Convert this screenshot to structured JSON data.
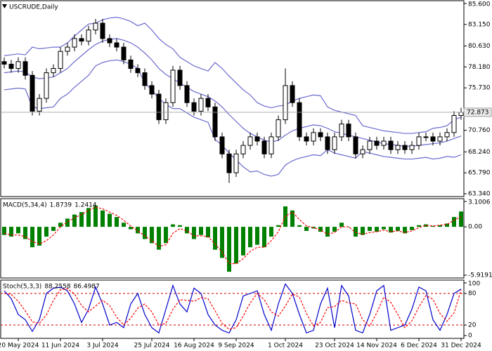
{
  "chart_data": [
    {
      "type": "candlestick",
      "title": "USCRUDE,Daily",
      "color": "#000000",
      "up_color": "#ffffff",
      "categories": [
        null,
        null,
        "20 May 2024",
        null,
        null,
        null,
        null,
        null,
        "11 Jun 2024",
        null,
        null,
        null,
        null,
        null,
        "3 Jul 2024",
        null,
        null,
        null,
        null,
        null,
        null,
        "25 Jul 2024",
        null,
        null,
        null,
        null,
        null,
        "16 Aug 2024",
        null,
        null,
        null,
        null,
        null,
        "9 Sep 2024",
        null,
        null,
        null,
        null,
        null,
        null,
        "1 Oct 2024",
        null,
        null,
        null,
        null,
        null,
        null,
        "23 Oct 2024",
        null,
        null,
        null,
        null,
        null,
        "14 Nov 2024",
        null,
        null,
        null,
        null,
        null,
        "6 Dec 2024",
        null,
        null,
        null,
        null,
        null,
        "31 Dec 2024"
      ],
      "open": [
        78.8,
        78.5,
        78.0,
        78.8,
        77.2,
        73.0,
        74.5,
        77.5,
        78.0,
        80.0,
        80.5,
        81.5,
        81.2,
        82.5,
        83.3,
        81.5,
        81.0,
        80.5,
        79.0,
        78.0,
        77.5,
        76.0,
        75.0,
        72.0,
        74.0,
        77.8,
        76.0,
        74.0,
        73.0,
        74.5,
        73.5,
        70.0,
        68.0,
        65.8,
        68.0,
        69.0,
        70.0,
        69.5,
        68.0,
        70.0,
        72.0,
        76.0,
        74.0,
        70.0,
        69.5,
        70.5,
        70.0,
        68.5,
        70.0,
        71.5,
        70.0,
        68.0,
        68.5,
        69.5,
        69.0,
        69.5,
        68.5,
        69.0,
        68.5,
        69.0,
        70.0,
        70.0,
        69.5,
        70.0,
        70.5,
        72.5
      ],
      "high": [
        79.3,
        79.0,
        79.3,
        79.3,
        77.7,
        75.0,
        78.0,
        78.5,
        80.5,
        81.0,
        82.0,
        82.0,
        83.0,
        83.8,
        83.8,
        82.0,
        81.5,
        81.0,
        79.5,
        78.5,
        78.0,
        76.5,
        75.5,
        74.5,
        78.3,
        78.3,
        76.5,
        74.5,
        75.0,
        75.0,
        74.0,
        70.5,
        68.5,
        68.5,
        69.5,
        70.5,
        70.5,
        70.0,
        70.5,
        72.5,
        78.0,
        76.5,
        74.5,
        70.5,
        71.0,
        71.0,
        70.5,
        70.5,
        72.0,
        72.0,
        70.5,
        69.0,
        70.0,
        70.0,
        70.0,
        70.0,
        69.5,
        69.5,
        69.5,
        70.5,
        70.5,
        70.5,
        70.5,
        71.0,
        73.0,
        73.4
      ],
      "low": [
        78.0,
        77.5,
        77.5,
        76.7,
        72.5,
        72.5,
        74.0,
        77.0,
        77.5,
        79.5,
        80.0,
        80.7,
        80.7,
        82.0,
        81.0,
        80.5,
        80.0,
        78.5,
        77.5,
        77.0,
        75.5,
        74.5,
        71.5,
        71.5,
        73.5,
        75.5,
        73.5,
        72.5,
        72.5,
        73.0,
        69.5,
        67.5,
        64.6,
        65.3,
        67.5,
        68.5,
        69.0,
        67.5,
        67.5,
        69.5,
        71.5,
        73.5,
        69.5,
        69.0,
        69.0,
        69.5,
        68.0,
        68.0,
        69.5,
        69.5,
        67.5,
        67.5,
        68.0,
        68.5,
        68.5,
        68.0,
        68.0,
        68.0,
        68.0,
        68.5,
        69.5,
        69.0,
        69.0,
        69.5,
        70.0,
        72.0
      ],
      "close": [
        78.5,
        78.0,
        78.8,
        77.2,
        73.0,
        74.5,
        77.5,
        78.0,
        80.0,
        80.5,
        81.5,
        81.2,
        82.5,
        83.3,
        81.5,
        81.0,
        80.5,
        79.0,
        78.0,
        77.5,
        76.0,
        75.0,
        72.0,
        74.0,
        77.8,
        76.0,
        74.0,
        73.0,
        74.5,
        73.5,
        70.0,
        68.0,
        65.8,
        68.0,
        69.0,
        70.0,
        69.5,
        68.0,
        70.0,
        72.0,
        76.0,
        74.0,
        70.0,
        69.5,
        70.5,
        70.0,
        68.5,
        70.0,
        71.5,
        70.0,
        68.0,
        68.5,
        69.5,
        69.0,
        69.5,
        68.5,
        69.0,
        68.5,
        69.0,
        70.0,
        70.0,
        69.5,
        70.0,
        70.5,
        72.5,
        72.873
      ],
      "bands": {
        "color": "#6a6ad0",
        "upper": [
          79.5,
          79.6,
          79.7,
          79.6,
          80.5,
          80.3,
          80.4,
          80.5,
          80.5,
          81.0,
          81.8,
          82.5,
          83.2,
          83.3,
          83.7,
          83.9,
          84.0,
          83.8,
          83.5,
          83.0,
          83.3,
          82.5,
          81.5,
          80.8,
          80.3,
          79.3,
          78.8,
          78.3,
          78.0,
          77.7,
          78.7,
          78.0,
          77.1,
          76.3,
          75.5,
          74.9,
          74.0,
          73.6,
          73.4,
          73.6,
          73.7,
          74.2,
          74.5,
          74.7,
          74.9,
          74.8,
          73.5,
          73.1,
          72.9,
          72.7,
          72.5,
          71.3,
          71.1,
          70.9,
          70.7,
          70.6,
          70.5,
          70.4,
          70.4,
          70.5,
          70.6,
          71.0,
          71.1,
          71.3,
          72.0,
          72.3
        ],
        "middle": [
          77.5,
          77.6,
          77.7,
          77.6,
          77.0,
          76.8,
          76.9,
          77.0,
          77.5,
          78.0,
          78.8,
          79.5,
          80.2,
          80.8,
          81.2,
          81.4,
          81.5,
          81.3,
          81.0,
          80.5,
          79.8,
          79.0,
          78.0,
          77.3,
          76.8,
          76.3,
          75.8,
          75.3,
          75.0,
          74.7,
          74.2,
          73.5,
          72.6,
          71.8,
          71.0,
          70.4,
          70.0,
          69.6,
          69.4,
          69.6,
          70.2,
          70.7,
          71.0,
          71.2,
          71.4,
          71.3,
          71.0,
          70.6,
          70.4,
          70.2,
          70.0,
          69.8,
          69.6,
          69.4,
          69.2,
          69.1,
          69.0,
          68.9,
          68.9,
          69.0,
          69.1,
          69.2,
          69.3,
          69.5,
          69.8,
          70.1
        ],
        "lower": [
          75.5,
          75.6,
          75.7,
          75.6,
          73.5,
          73.3,
          73.4,
          73.5,
          74.5,
          75.0,
          75.8,
          76.5,
          77.2,
          78.3,
          78.7,
          78.9,
          79.0,
          78.8,
          78.5,
          78.0,
          76.3,
          75.5,
          74.5,
          73.8,
          73.3,
          73.3,
          72.8,
          72.3,
          72.0,
          71.7,
          69.7,
          69.0,
          68.1,
          67.3,
          66.5,
          65.9,
          66.0,
          65.6,
          65.4,
          65.6,
          66.7,
          67.2,
          67.5,
          67.7,
          67.9,
          67.8,
          68.5,
          68.1,
          67.9,
          67.7,
          67.5,
          68.3,
          68.1,
          67.9,
          67.7,
          67.6,
          67.5,
          67.4,
          67.4,
          67.5,
          67.6,
          67.4,
          67.5,
          67.7,
          67.6,
          67.9
        ]
      },
      "price_line_color": "#a0a0a0",
      "ylim": [
        63.34,
        85.6
      ],
      "yticks": [
        {
          "value": 85.6,
          "label": "85.600"
        },
        {
          "value": 83.15,
          "label": "83.150"
        },
        {
          "value": 80.63,
          "label": "80.630"
        },
        {
          "value": 78.18,
          "label": "78.180"
        },
        {
          "value": 75.73,
          "label": "75.730"
        },
        {
          "value": 70.76,
          "label": "70.760"
        },
        {
          "value": 68.24,
          "label": "68.240"
        },
        {
          "value": 65.79,
          "label": "65.790"
        },
        {
          "value": 63.34,
          "label": "63.340"
        }
      ]
    },
    {
      "type": "macd",
      "title": "MACD(5,34,4)",
      "series": [
        {
          "color": "#008000",
          "values": [
            -1.0,
            -1.2,
            -0.8,
            -1.5,
            -2.5,
            -2.3,
            -1.2,
            -0.5,
            0.5,
            1.0,
            1.5,
            1.8,
            2.3,
            2.6,
            2.0,
            1.6,
            1.2,
            0.5,
            -0.3,
            -0.8,
            -1.5,
            -2.0,
            -2.8,
            -2.0,
            0.3,
            0.2,
            -0.8,
            -1.5,
            -1.0,
            -1.3,
            -2.8,
            -3.8,
            -5.5,
            -4.5,
            -3.5,
            -2.5,
            -2.2,
            -2.5,
            -1.2,
            0.2,
            2.5,
            2.0,
            0.2,
            -0.5,
            -0.2,
            -0.6,
            -1.2,
            -0.6,
            0.5,
            0.0,
            -1.2,
            -1.0,
            -0.5,
            -0.6,
            -0.3,
            -0.7,
            -0.5,
            -0.8,
            -0.4,
            0.2,
            0.3,
            0.1,
            0.2,
            0.4,
            1.2,
            1.8739
          ]
        },
        {
          "color": "#ff0000",
          "values": [
            -0.8,
            -1.0,
            -1.0,
            -1.2,
            -1.8,
            -2.1,
            -1.7,
            -1.0,
            0.0,
            0.6,
            1.1,
            1.5,
            2.0,
            2.4,
            2.2,
            1.8,
            1.4,
            0.8,
            0.1,
            -0.5,
            -1.1,
            -1.7,
            -2.4,
            -2.2,
            -0.8,
            -0.2,
            -0.5,
            -1.1,
            -1.1,
            -1.2,
            -2.1,
            -3.1,
            -4.5,
            -4.5,
            -3.9,
            -3.0,
            -2.5,
            -2.5,
            -1.7,
            -0.6,
            1.3,
            1.8,
            0.9,
            0.1,
            -0.1,
            -0.4,
            -0.9,
            -0.7,
            0.0,
            0.0,
            -0.7,
            -0.9,
            -0.7,
            -0.6,
            -0.4,
            -0.6,
            -0.5,
            -0.7,
            -0.5,
            -0.1,
            0.2,
            0.1,
            0.2,
            0.3,
            0.8,
            1.2414
          ]
        }
      ],
      "ylim": [
        -5.9191,
        3.1006
      ],
      "yticks": [
        3.1006,
        {
          "value": 0,
          "label": "0.00"
        },
        -5.9191
      ]
    },
    {
      "type": "stochastic",
      "title": "Stoch(5,3,3)",
      "series": [
        {
          "color": "#0000cc",
          "values": [
            85,
            70,
            40,
            30,
            8,
            30,
            80,
            90,
            92,
            85,
            60,
            25,
            50,
            92,
            60,
            20,
            25,
            15,
            60,
            80,
            40,
            15,
            5,
            50,
            95,
            60,
            45,
            90,
            80,
            40,
            20,
            10,
            5,
            30,
            75,
            80,
            85,
            40,
            10,
            60,
            98,
            80,
            40,
            5,
            10,
            60,
            90,
            15,
            95,
            75,
            10,
            5,
            40,
            85,
            95,
            10,
            15,
            20,
            50,
            92,
            85,
            30,
            10,
            40,
            80,
            88.2558
          ]
        },
        {
          "color": "#ff0000",
          "values": [
            80,
            78,
            65,
            47,
            26,
            23,
            39,
            67,
            87,
            89,
            79,
            57,
            45,
            56,
            67,
            57,
            35,
            20,
            33,
            52,
            60,
            45,
            20,
            23,
            50,
            68,
            67,
            65,
            72,
            70,
            47,
            23,
            12,
            15,
            37,
            62,
            80,
            68,
            45,
            37,
            56,
            79,
            73,
            42,
            18,
            25,
            53,
            55,
            67,
            62,
            60,
            30,
            18,
            43,
            73,
            63,
            40,
            15,
            28,
            54,
            76,
            69,
            42,
            27,
            43,
            86.4987
          ]
        }
      ],
      "levels": [
        80,
        20
      ],
      "level_color": "#cc0000",
      "ylim": [
        0,
        100
      ],
      "yticks": [
        100,
        80,
        20,
        0
      ]
    }
  ]
}
